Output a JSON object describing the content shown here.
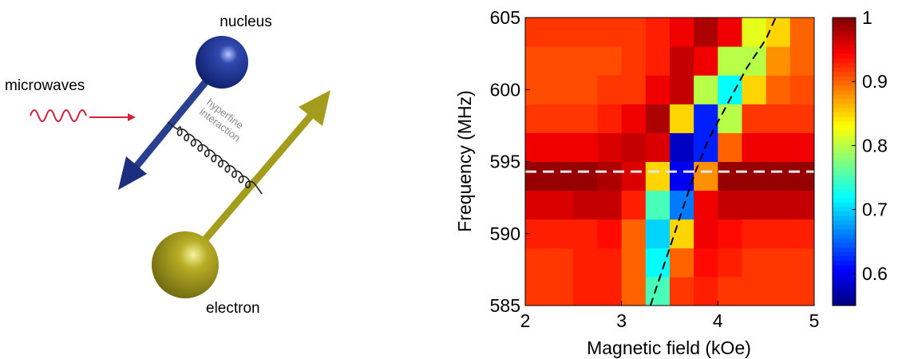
{
  "diagram": {
    "nucleus": "nucleus",
    "microwaves": "microwaves",
    "hyperfine": [
      "hyperfine",
      "interaction"
    ],
    "electron": "electron"
  },
  "chart_data": {
    "type": "heatmap",
    "xlabel": "Magnetic field (kOe)",
    "ylabel": "Frequency (MHz)",
    "xlim": [
      2,
      5
    ],
    "xticks": [
      2,
      3,
      4,
      5
    ],
    "ylim": [
      585,
      605
    ],
    "yticks": [
      585,
      590,
      595,
      600,
      605
    ],
    "zlim": [
      0.55,
      1
    ],
    "zticks": [
      0.6,
      0.7,
      0.8,
      0.9,
      1
    ],
    "colormap": "jet",
    "z": [
      [
        0.92,
        0.92,
        0.93,
        0.93,
        0.9,
        0.75,
        0.92,
        0.93,
        0.92,
        0.92,
        0.92,
        0.92
      ],
      [
        0.92,
        0.92,
        0.93,
        0.93,
        0.9,
        0.72,
        0.9,
        0.94,
        0.93,
        0.92,
        0.92,
        0.92
      ],
      [
        0.93,
        0.93,
        0.93,
        0.94,
        0.9,
        0.7,
        0.85,
        0.95,
        0.94,
        0.93,
        0.93,
        0.93
      ],
      [
        0.96,
        0.96,
        0.97,
        0.97,
        0.93,
        0.75,
        0.66,
        0.95,
        0.97,
        0.97,
        0.97,
        0.97
      ],
      [
        0.99,
        0.99,
        0.99,
        0.98,
        0.96,
        0.85,
        0.6,
        0.88,
        0.99,
        0.99,
        0.99,
        0.99
      ],
      [
        0.95,
        0.95,
        0.95,
        0.96,
        0.97,
        0.96,
        0.58,
        0.62,
        0.9,
        0.95,
        0.95,
        0.95
      ],
      [
        0.92,
        0.92,
        0.92,
        0.93,
        0.95,
        0.98,
        0.85,
        0.62,
        0.8,
        0.92,
        0.92,
        0.92
      ],
      [
        0.91,
        0.91,
        0.91,
        0.92,
        0.92,
        0.95,
        0.97,
        0.8,
        0.72,
        0.85,
        0.9,
        0.91
      ],
      [
        0.91,
        0.91,
        0.91,
        0.91,
        0.92,
        0.93,
        0.97,
        0.95,
        0.8,
        0.8,
        0.88,
        0.9
      ],
      [
        0.92,
        0.92,
        0.92,
        0.92,
        0.92,
        0.93,
        0.95,
        0.98,
        0.95,
        0.82,
        0.85,
        0.9
      ]
    ],
    "curve": {
      "color": "#000000",
      "x": [
        3.3,
        3.45,
        3.6,
        3.75,
        3.9,
        4.1,
        4.3,
        4.5,
        4.6
      ],
      "y": [
        585,
        588,
        591,
        594,
        596.5,
        599,
        601.5,
        603.5,
        605
      ]
    },
    "hline": {
      "color": "#e8e8e8",
      "y": 594.3
    }
  }
}
